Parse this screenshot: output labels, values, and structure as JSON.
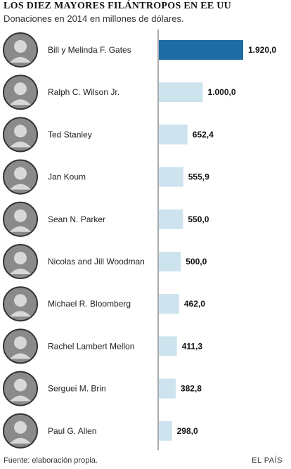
{
  "title": "LOS DIEZ MAYORES FILÁNTROPOS EN EE UU",
  "subtitle": "Donaciones en 2014  en millones de dólares.",
  "footer": {
    "source": "Fuente: elaboración propia.",
    "brand": "EL PAÍS"
  },
  "colors": {
    "highlight": "#1f6ba5",
    "bar": "#cde3ee",
    "axis": "#555555",
    "text": "#222222",
    "value": "#111111",
    "photo_bg": "#8a8a8a",
    "photo_ring": "#333333"
  },
  "chart_data": {
    "type": "bar",
    "orientation": "horizontal",
    "title": "LOS DIEZ MAYORES FILÁNTROPOS EN EE UU",
    "subtitle": "Donaciones en 2014  en millones de dólares.",
    "categories": [
      "Bill y Melinda F. Gates",
      "Ralph C. Wilson Jr.",
      "Ted Stanley",
      "Jan Koum",
      "Sean N. Parker",
      "Nicolas and Jill Woodman",
      "Michael R. Bloomberg",
      "Rachel Lambert Mellon",
      "Serguei M. Brin",
      "Paul G. Allen"
    ],
    "values": [
      1920.0,
      1000.0,
      652.4,
      555.9,
      550.0,
      500.0,
      462.0,
      411.3,
      382.8,
      298.0
    ],
    "value_labels": [
      "1.920,0",
      "1.000,0",
      "652,4",
      "555,9",
      "550,0",
      "500,0",
      "462,0",
      "411,3",
      "382,8",
      "298,0"
    ],
    "highlighted_index": 0,
    "xlim": [
      0,
      1920
    ],
    "grid": false,
    "legend": "none",
    "icons": [
      "portrait-photo",
      "portrait-photo",
      "portrait-photo",
      "portrait-photo",
      "portrait-photo",
      "portrait-photo",
      "portrait-photo",
      "portrait-photo",
      "portrait-photo",
      "portrait-photo"
    ]
  }
}
